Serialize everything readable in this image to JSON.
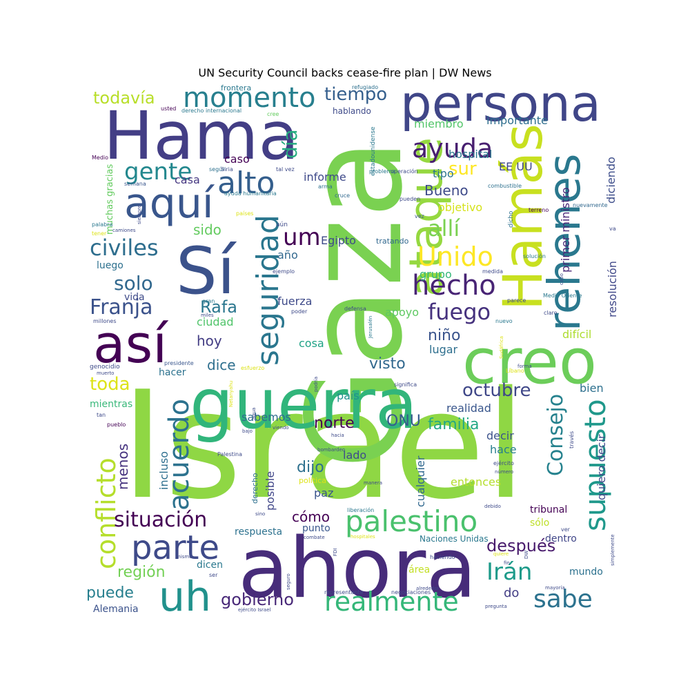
{
  "title": "UN Security Council backs cease-fire plan | DW News",
  "background": "#ffffff",
  "palette_name": "viridis",
  "words": [
    {
      "text": "Israel",
      "weight": 240,
      "color": "#8fd744"
    },
    {
      "text": "Gaza",
      "weight": 205,
      "color": "#7ad151"
    },
    {
      "text": "ahora",
      "weight": 130,
      "color": "#472c7a"
    },
    {
      "text": "guerra",
      "weight": 100,
      "color": "#31b57b"
    },
    {
      "text": "Hama",
      "weight": 98,
      "color": "#433e85"
    },
    {
      "text": "creo",
      "weight": 92,
      "color": "#6ccd5a"
    },
    {
      "text": "Hamás",
      "weight": 80,
      "color": "#c8e020"
    },
    {
      "text": "persona",
      "weight": 72,
      "color": "#404688"
    },
    {
      "text": "rehenes",
      "weight": 66,
      "color": "#2a788e"
    },
    {
      "text": "así",
      "weight": 78,
      "color": "#440154"
    },
    {
      "text": "Sí",
      "weight": 96,
      "color": "#3b528b"
    },
    {
      "text": "ataque",
      "weight": 65,
      "color": "#95d840"
    },
    {
      "text": "aquí",
      "weight": 60,
      "color": "#39568c"
    },
    {
      "text": "uh",
      "weight": 60,
      "color": "#21918c"
    },
    {
      "text": "seguridad",
      "weight": 42,
      "color": "#2a768e"
    },
    {
      "text": "palestino",
      "weight": 42,
      "color": "#4ac16d"
    },
    {
      "text": "parte",
      "weight": 48,
      "color": "#3e4a89"
    },
    {
      "text": "alto",
      "weight": 44,
      "color": "#355f8d"
    },
    {
      "text": "supuesto",
      "weight": 42,
      "color": "#1f988b"
    },
    {
      "text": "acuerdo",
      "weight": 40,
      "color": "#2c728e"
    },
    {
      "text": "conflicto",
      "weight": 38,
      "color": "#b5de2b"
    },
    {
      "text": "momento",
      "weight": 40,
      "color": "#277f8e"
    },
    {
      "text": "ayuda",
      "weight": 38,
      "color": "#481f70"
    },
    {
      "text": "hecho",
      "weight": 40,
      "color": "#482475"
    },
    {
      "text": "Unido",
      "weight": 38,
      "color": "#fde725"
    },
    {
      "text": "realmente",
      "weight": 38,
      "color": "#35b779"
    },
    {
      "text": "sabe",
      "weight": 36,
      "color": "#2c728e"
    },
    {
      "text": "Irán",
      "weight": 34,
      "color": "#1e9b8a"
    },
    {
      "text": "gente",
      "weight": 34,
      "color": "#23888e"
    },
    {
      "text": "civiles",
      "weight": 32,
      "color": "#2e6e8e"
    },
    {
      "text": "Franja",
      "weight": 30,
      "color": "#3b528b"
    },
    {
      "text": "fuego",
      "weight": 32,
      "color": "#46327e"
    },
    {
      "text": "allí",
      "weight": 32,
      "color": "#7ad151"
    },
    {
      "text": "um",
      "weight": 34,
      "color": "#440154"
    },
    {
      "text": "Consejo",
      "weight": 30,
      "color": "#26828e"
    },
    {
      "text": "situación",
      "weight": 30,
      "color": "#440154"
    },
    {
      "text": "solo",
      "weight": 28,
      "color": "#31688e"
    },
    {
      "text": "día",
      "weight": 30,
      "color": "#27ad81"
    },
    {
      "text": "toda",
      "weight": 26,
      "color": "#dde318"
    },
    {
      "text": "todavía",
      "weight": 24,
      "color": "#b8de29"
    },
    {
      "text": "tiempo",
      "weight": 26,
      "color": "#355f8d"
    },
    {
      "text": "sur",
      "weight": 26,
      "color": "#fde725"
    },
    {
      "text": "octubre",
      "weight": 26,
      "color": "#3f4788"
    },
    {
      "text": "Rafa",
      "weight": 24,
      "color": "#2a768e"
    },
    {
      "text": "gobierno",
      "weight": 24,
      "color": "#482878"
    },
    {
      "text": "después",
      "weight": 24,
      "color": "#481a6c"
    },
    {
      "text": "familia",
      "weight": 22,
      "color": "#22a884"
    },
    {
      "text": "región",
      "weight": 22,
      "color": "#73d055"
    },
    {
      "text": "puede",
      "weight": 22,
      "color": "#277f8e"
    },
    {
      "text": "Bueno",
      "weight": 20,
      "color": "#3e4a89"
    },
    {
      "text": "norte",
      "weight": 22,
      "color": "#440154"
    },
    {
      "text": "ONU",
      "weight": 22,
      "color": "#375b8d"
    },
    {
      "text": "dijo",
      "weight": 22,
      "color": "#2d708e"
    },
    {
      "text": "visto",
      "weight": 22,
      "color": "#31688e"
    },
    {
      "text": "niño",
      "weight": 22,
      "color": "#3a548c"
    },
    {
      "text": "menos",
      "weight": 20,
      "color": "#46337f"
    },
    {
      "text": "dice",
      "weight": 20,
      "color": "#2e6f8e"
    },
    {
      "text": "hoy",
      "weight": 20,
      "color": "#433d84"
    },
    {
      "text": "cómo",
      "weight": 20,
      "color": "#440154"
    },
    {
      "text": "sido",
      "weight": 20,
      "color": "#63cb5f"
    },
    {
      "text": "importante",
      "weight": 16,
      "color": "#2e6e8e"
    },
    {
      "text": "hospital",
      "weight": 16,
      "color": "#2a788e"
    },
    {
      "text": "miembro",
      "weight": 16,
      "color": "#52c569"
    },
    {
      "text": "diciendo",
      "weight": 16,
      "color": "#3d4d8a"
    },
    {
      "text": "primer ministro",
      "weight": 16,
      "color": "#482677"
    },
    {
      "text": "resolución",
      "weight": 16,
      "color": "#3f4788"
    },
    {
      "text": "informe",
      "weight": 16,
      "color": "#3e4989"
    },
    {
      "text": "EE UU",
      "weight": 16,
      "color": "#3e4989"
    },
    {
      "text": "tipo",
      "weight": 16,
      "color": "#2b748e"
    },
    {
      "text": "objetivo",
      "weight": 16,
      "color": "#d5e21a"
    },
    {
      "text": "Egipto",
      "weight": 16,
      "color": "#3e4a89"
    },
    {
      "text": "casa",
      "weight": 16,
      "color": "#453781"
    },
    {
      "text": "caso",
      "weight": 16,
      "color": "#440154"
    },
    {
      "text": "año",
      "weight": 16,
      "color": "#31688e"
    },
    {
      "text": "grupo",
      "weight": 16,
      "color": "#35b779"
    },
    {
      "text": "fuerza",
      "weight": 16,
      "color": "#3e4a89"
    },
    {
      "text": "apoyo",
      "weight": 16,
      "color": "#5ec962"
    },
    {
      "text": "cosa",
      "weight": 16,
      "color": "#20a386"
    },
    {
      "text": "lugar",
      "weight": 16,
      "color": "#2e6f8e"
    },
    {
      "text": "ciudad",
      "weight": 16,
      "color": "#50c46a"
    },
    {
      "text": "difícil",
      "weight": 16,
      "color": "#addc30"
    },
    {
      "text": "país",
      "weight": 16,
      "color": "#21918c"
    },
    {
      "text": "realidad",
      "weight": 16,
      "color": "#39568c"
    },
    {
      "text": "bien",
      "weight": 16,
      "color": "#2d708e"
    },
    {
      "text": "quiero decir",
      "weight": 16,
      "color": "#3e4a89"
    },
    {
      "text": "decir",
      "weight": 16,
      "color": "#3b528b"
    },
    {
      "text": "hace",
      "weight": 16,
      "color": "#277f8e"
    },
    {
      "text": "entonces",
      "weight": 16,
      "color": "#b4de2c"
    },
    {
      "text": "paz",
      "weight": 16,
      "color": "#3a548c"
    },
    {
      "text": "lado",
      "weight": 16,
      "color": "#3e4c8a"
    },
    {
      "text": "incluso",
      "weight": 16,
      "color": "#2e6e8e"
    },
    {
      "text": "posible",
      "weight": 16,
      "color": "#404688"
    },
    {
      "text": "cualquier",
      "weight": 16,
      "color": "#31688e"
    },
    {
      "text": "sabemos",
      "weight": 16,
      "color": "#2f6c8e"
    },
    {
      "text": "punto",
      "weight": 14,
      "color": "#39568c"
    },
    {
      "text": "respuesta",
      "weight": 14,
      "color": "#2c718e"
    },
    {
      "text": "tribunal",
      "weight": 14,
      "color": "#440154"
    },
    {
      "text": "sólo",
      "weight": 14,
      "color": "#bddf26"
    },
    {
      "text": "dentro",
      "weight": 14,
      "color": "#404688"
    },
    {
      "text": "mundo",
      "weight": 14,
      "color": "#2c718e"
    },
    {
      "text": "área",
      "weight": 14,
      "color": "#c2df23"
    },
    {
      "text": "dicen",
      "weight": 14,
      "color": "#2a788e"
    },
    {
      "text": "do",
      "weight": 18,
      "color": "#433e85"
    },
    {
      "text": "Alemania",
      "weight": 14,
      "color": "#3b528b"
    },
    {
      "text": "hacer",
      "weight": 14,
      "color": "#2c728e"
    },
    {
      "text": "mientras",
      "weight": 14,
      "color": "#39b87a"
    },
    {
      "text": "luego",
      "weight": 14,
      "color": "#2d708e"
    },
    {
      "text": "vida",
      "weight": 14,
      "color": "#3e4a89"
    },
    {
      "text": "muchas gracias",
      "weight": 13,
      "color": "#63cb5f"
    },
    {
      "text": "frontera",
      "weight": 11,
      "color": "#2a788e"
    },
    {
      "text": "hablando",
      "weight": 12,
      "color": "#3e4a89"
    },
    {
      "text": "Naciones Unidas",
      "weight": 12,
      "color": "#2a788e"
    },
    {
      "text": "derecho",
      "weight": 11,
      "color": "#2d708e"
    },
    {
      "text": "política",
      "weight": 11,
      "color": "#dde318"
    },
    {
      "text": "tratando",
      "weight": 11,
      "color": "#31688e"
    },
    {
      "text": "estadounidense",
      "weight": 9,
      "color": "#2a788e"
    },
    {
      "text": "refugiado",
      "weight": 8,
      "color": "#2d708e"
    },
    {
      "text": "usted",
      "weight": 8,
      "color": "#440154"
    },
    {
      "text": "derecho internacional",
      "weight": 8,
      "color": "#2a788e"
    },
    {
      "text": "cree",
      "weight": 8,
      "color": "#63cb5f"
    },
    {
      "text": "según",
      "weight": 8,
      "color": "#2d708e"
    },
    {
      "text": "Siria",
      "weight": 8,
      "color": "#3e4a89"
    },
    {
      "text": "tal vez",
      "weight": 8,
      "color": "#3e4a89"
    },
    {
      "text": "problema",
      "weight": 8,
      "color": "#2a788e"
    },
    {
      "text": "operación",
      "weight": 8,
      "color": "#3e4a89"
    },
    {
      "text": "semana",
      "weight": 8,
      "color": "#39568c"
    },
    {
      "text": "arma",
      "weight": 8,
      "color": "#2d708e"
    },
    {
      "text": "combustible",
      "weight": 8,
      "color": "#2d708e"
    },
    {
      "text": "ayuda humanitaria",
      "weight": 8,
      "color": "#2a788e"
    },
    {
      "text": "cruce",
      "weight": 8,
      "color": "#31688e"
    },
    {
      "text": "pueden",
      "weight": 8,
      "color": "#3e4a89"
    },
    {
      "text": "terreno",
      "weight": 8,
      "color": "#440154"
    },
    {
      "text": "nuevamente",
      "weight": 8,
      "color": "#31688e"
    },
    {
      "text": "países",
      "weight": 8,
      "color": "#dde318"
    },
    {
      "text": "vez",
      "weight": 8,
      "color": "#39568c"
    },
    {
      "text": "dicho",
      "weight": 9,
      "color": "#2d708e"
    },
    {
      "text": "va",
      "weight": 8,
      "color": "#3e4a89"
    },
    {
      "text": "Medio",
      "weight": 8,
      "color": "#440154"
    },
    {
      "text": "palabra",
      "weight": 8,
      "color": "#2a788e"
    },
    {
      "text": "tener",
      "weight": 8,
      "color": "#dde318"
    },
    {
      "text": "siempre",
      "weight": 7,
      "color": "#3e4a89"
    },
    {
      "text": "camiones",
      "weight": 7,
      "color": "#3e4a89"
    },
    {
      "text": "aún",
      "weight": 9,
      "color": "#3e4a89"
    },
    {
      "text": "ejemplo",
      "weight": 8,
      "color": "#3e4a89"
    },
    {
      "text": "medida",
      "weight": 8,
      "color": "#3e4a89"
    },
    {
      "text": "solución",
      "weight": 8,
      "color": "#2a788e"
    },
    {
      "text": "cabo",
      "weight": 7,
      "color": "#3e4a89"
    },
    {
      "text": "gran",
      "weight": 8,
      "color": "#2a788e"
    },
    {
      "text": "parece",
      "weight": 8,
      "color": "#3e4a89"
    },
    {
      "text": "Medio Oriente",
      "weight": 8,
      "color": "#2a788e"
    },
    {
      "text": "defensa",
      "weight": 8,
      "color": "#3e4a89"
    },
    {
      "text": "millones",
      "weight": 8,
      "color": "#3e4a89"
    },
    {
      "text": "miles",
      "weight": 7,
      "color": "#3e4a89"
    },
    {
      "text": "poder",
      "weight": 8,
      "color": "#3e4a89"
    },
    {
      "text": "nuevo",
      "weight": 8,
      "color": "#2a788e"
    },
    {
      "text": "Jerusalén",
      "weight": 7,
      "color": "#2a788e"
    },
    {
      "text": "claro",
      "weight": 8,
      "color": "#3e4a89"
    },
    {
      "text": "genocidio",
      "weight": 9,
      "color": "#3e4a89"
    },
    {
      "text": "presidente",
      "weight": 8,
      "color": "#39568c"
    },
    {
      "text": "muerto",
      "weight": 7,
      "color": "#3e4a89"
    },
    {
      "text": "esfuerzo",
      "weight": 8,
      "color": "#dde318"
    },
    {
      "text": "Sudáfrica",
      "weight": 7,
      "color": "#dde318"
    },
    {
      "text": "Líbano",
      "weight": 8,
      "color": "#dde318"
    },
    {
      "text": "forma",
      "weight": 7,
      "color": "#3e4a89"
    },
    {
      "text": "significa",
      "weight": 8,
      "color": "#3e4a89"
    },
    {
      "text": "podría",
      "weight": 7,
      "color": "#3e4a89"
    },
    {
      "text": "Netanyahu",
      "weight": 7,
      "color": "#dde318"
    },
    {
      "text": "agua",
      "weight": 7,
      "color": "#3e4a89"
    },
    {
      "text": "tan",
      "weight": 8,
      "color": "#3e4a89"
    },
    {
      "text": "pueblo",
      "weight": 8,
      "color": "#440154"
    },
    {
      "text": "bajo",
      "weight": 7,
      "color": "#3e4a89"
    },
    {
      "text": "viendo",
      "weight": 7,
      "color": "#3e4a89"
    },
    {
      "text": "hacia",
      "weight": 7,
      "color": "#3e4a89"
    },
    {
      "text": "través",
      "weight": 8,
      "color": "#3e4a89"
    },
    {
      "text": "Palestina",
      "weight": 8,
      "color": "#3e4a89"
    },
    {
      "text": "bombardeo",
      "weight": 7,
      "color": "#3e4a89"
    },
    {
      "text": "ejército",
      "weight": 8,
      "color": "#3e4a89"
    },
    {
      "text": "número",
      "weight": 7,
      "color": "#3e4a89"
    },
    {
      "text": "manera",
      "weight": 7,
      "color": "#3e4a89"
    },
    {
      "text": "sino",
      "weight": 7,
      "color": "#3e4a89"
    },
    {
      "text": "liberación",
      "weight": 8,
      "color": "#2a788e"
    },
    {
      "text": "debido",
      "weight": 7,
      "color": "#3e4a89"
    },
    {
      "text": "combate",
      "weight": 7,
      "color": "#3e4a89"
    },
    {
      "text": "hospitales",
      "weight": 7,
      "color": "#dde318"
    },
    {
      "text": "FDI",
      "weight": 7,
      "color": "#3e4a89"
    },
    {
      "text": "simplemente",
      "weight": 7,
      "color": "#3e4a89"
    },
    {
      "text": "ver",
      "weight": 8,
      "color": "#3e4a89"
    },
    {
      "text": "quiere",
      "weight": 7,
      "color": "#dde318"
    },
    {
      "text": "fin",
      "weight": 7,
      "color": "#3e4a89"
    },
    {
      "text": "haciendo",
      "weight": 8,
      "color": "#3e4a89"
    },
    {
      "text": "mismo",
      "weight": 7,
      "color": "#3e4a89"
    },
    {
      "text": "ser",
      "weight": 8,
      "color": "#3e4a89"
    },
    {
      "text": "seguro",
      "weight": 7,
      "color": "#3e4a89"
    },
    {
      "text": "alrededor",
      "weight": 7,
      "color": "#3e4a89"
    },
    {
      "text": "mayoría",
      "weight": 7,
      "color": "#3e4a89"
    },
    {
      "text": "representante",
      "weight": 8,
      "color": "#3e4a89"
    },
    {
      "text": "negociaciones",
      "weight": 8,
      "color": "#3e4a89"
    },
    {
      "text": "pregunta",
      "weight": 7,
      "color": "#3e4a89"
    },
    {
      "text": "ejército Israel",
      "weight": 7,
      "color": "#3e4a89"
    },
    {
      "text": "DW",
      "weight": 7,
      "color": "#3e4a89"
    }
  ]
}
